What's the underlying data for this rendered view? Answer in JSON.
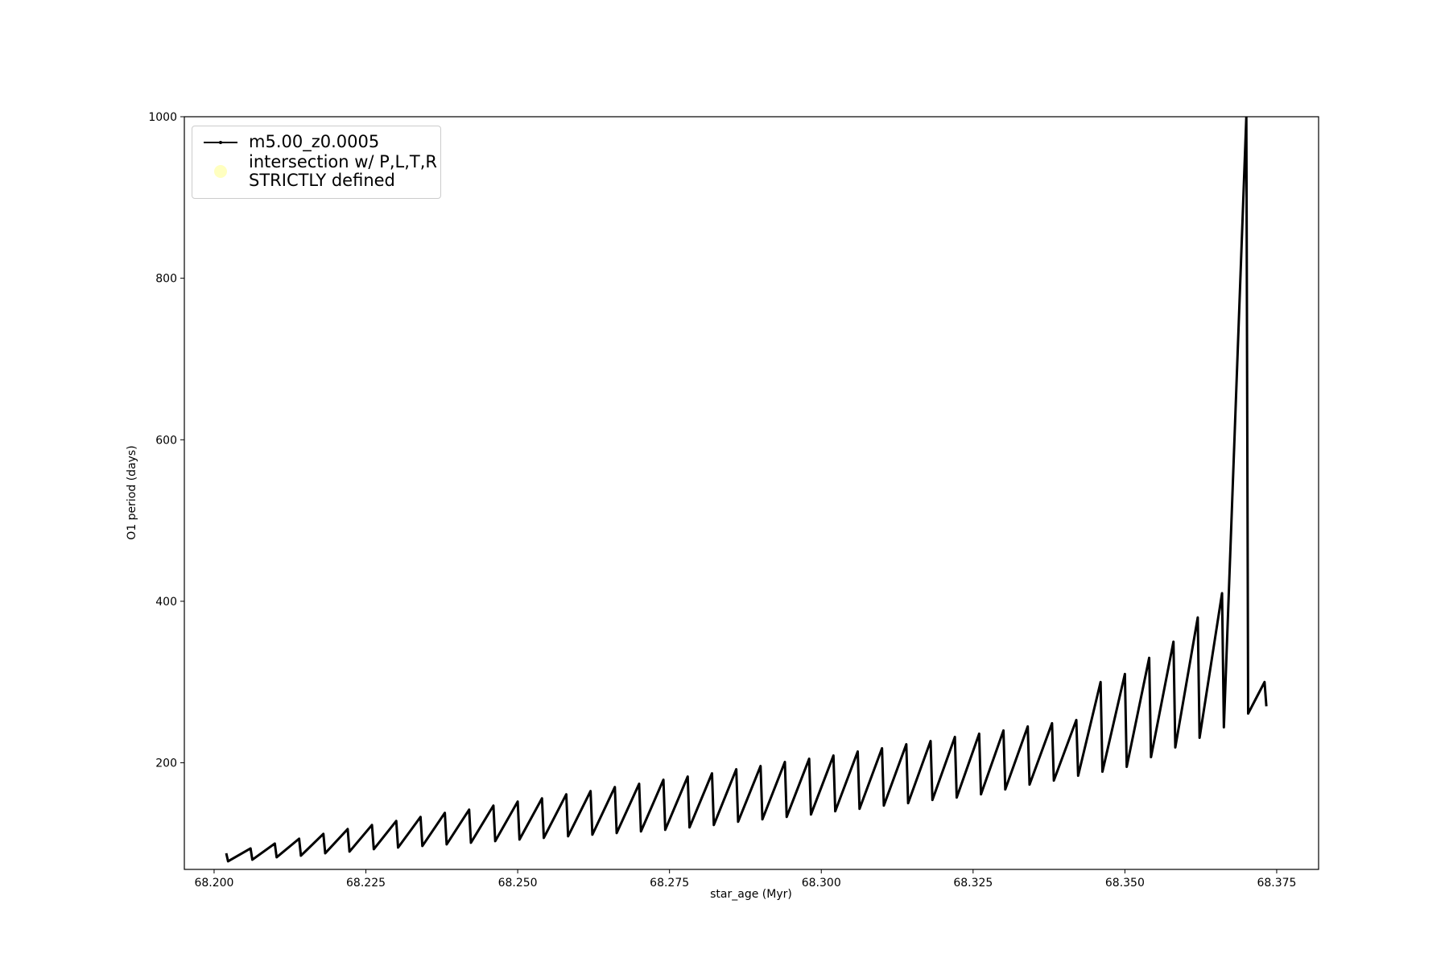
{
  "chart_data": {
    "type": "line",
    "xlabel": "star_age (Myr)",
    "ylabel": "O1 period (days)",
    "xlim": [
      68.1951,
      68.3819
    ],
    "ylim": [
      68,
      1000
    ],
    "xticks": [
      {
        "value": 68.2,
        "label": "68.200"
      },
      {
        "value": 68.225,
        "label": "68.225"
      },
      {
        "value": 68.25,
        "label": "68.250"
      },
      {
        "value": 68.275,
        "label": "68.275"
      },
      {
        "value": 68.3,
        "label": "68.300"
      },
      {
        "value": 68.325,
        "label": "68.325"
      },
      {
        "value": 68.35,
        "label": "68.350"
      },
      {
        "value": 68.375,
        "label": "68.375"
      }
    ],
    "yticks": [
      200,
      400,
      600,
      800,
      1000
    ],
    "legend": "upper left",
    "series": [
      {
        "name": "m5.00_z0.0005",
        "color": "#000000",
        "x": [
          68.202,
          68.2023,
          68.206,
          68.2063,
          68.21,
          68.2103,
          68.214,
          68.2143,
          68.218,
          68.2183,
          68.222,
          68.2223,
          68.226,
          68.2263,
          68.23,
          68.2303,
          68.234,
          68.2343,
          68.238,
          68.2383,
          68.242,
          68.2423,
          68.246,
          68.2463,
          68.25,
          68.2503,
          68.254,
          68.2543,
          68.258,
          68.2583,
          68.262,
          68.2623,
          68.266,
          68.2663,
          68.27,
          68.2703,
          68.274,
          68.2743,
          68.278,
          68.2783,
          68.282,
          68.2823,
          68.286,
          68.2863,
          68.29,
          68.2903,
          68.294,
          68.2943,
          68.298,
          68.2983,
          68.302,
          68.3023,
          68.306,
          68.3063,
          68.31,
          68.3103,
          68.314,
          68.3143,
          68.318,
          68.3183,
          68.322,
          68.3223,
          68.326,
          68.3263,
          68.33,
          68.3303,
          68.334,
          68.3343,
          68.338,
          68.3383,
          68.342,
          68.3423,
          68.346,
          68.3463,
          68.35,
          68.3503,
          68.354,
          68.3543,
          68.358,
          68.3583,
          68.362,
          68.3623,
          68.366,
          68.3663,
          68.37,
          68.3703,
          68.373,
          68.3733
        ],
        "values": [
          88,
          78,
          94,
          80,
          100,
          83,
          106,
          85,
          112,
          88,
          118,
          90,
          123,
          93,
          128,
          95,
          133,
          97,
          138,
          99,
          142,
          101,
          147,
          103,
          152,
          105,
          156,
          107,
          161,
          109,
          165,
          111,
          170,
          113,
          174,
          115,
          179,
          117,
          183,
          120,
          187,
          123,
          192,
          127,
          196,
          130,
          201,
          133,
          205,
          136,
          209,
          140,
          214,
          143,
          218,
          147,
          223,
          150,
          227,
          154,
          232,
          157,
          236,
          161,
          240,
          167,
          245,
          173,
          249,
          178,
          253,
          184,
          300,
          189,
          310,
          195,
          330,
          207,
          350,
          219,
          380,
          231,
          410,
          244,
          1000,
          261,
          300,
          270
        ]
      },
      {
        "name": "intersection w/ P,L,T,R\nSTRICTLY defined",
        "color": "#ffffc0",
        "x": [],
        "values": []
      }
    ]
  }
}
